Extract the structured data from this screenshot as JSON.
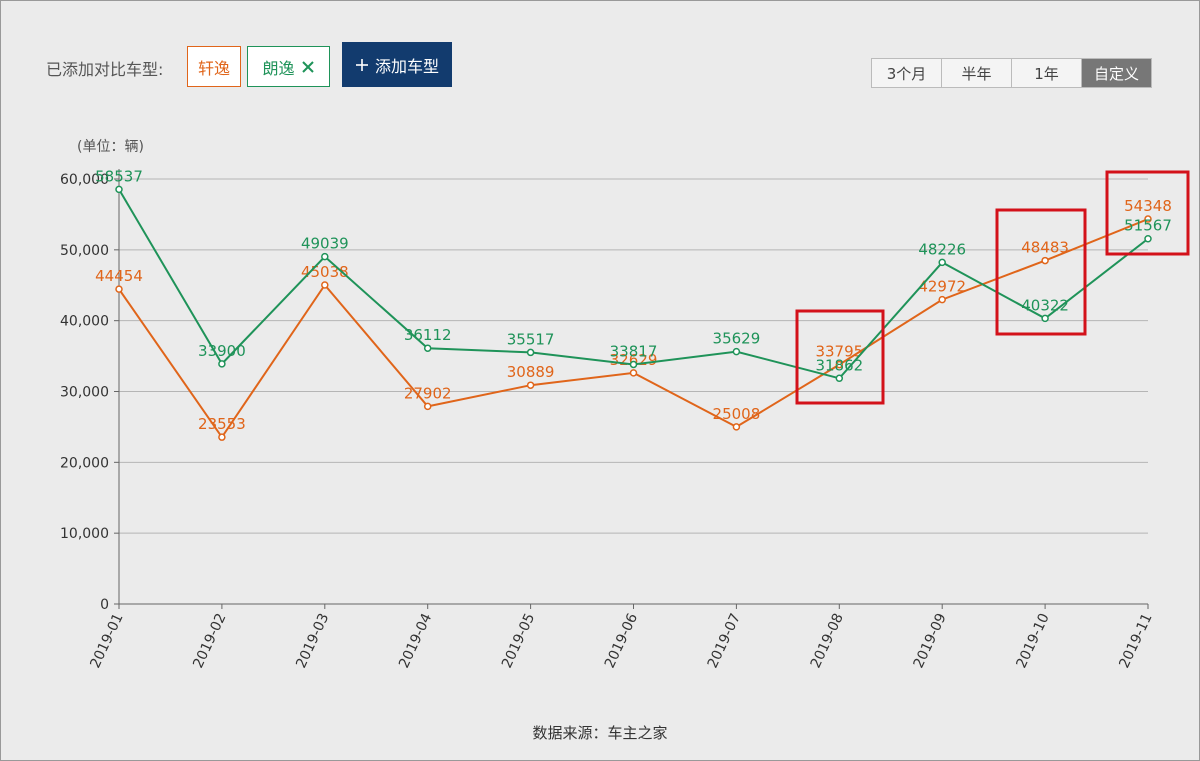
{
  "ui": {
    "compare_label": "已添加对比车型:",
    "add_button": "添加车型",
    "time_tabs": [
      "3个月",
      "半年",
      "1年",
      "自定义"
    ]
  },
  "chart_data": {
    "type": "line",
    "y_label": "(单位：辆)",
    "categories": [
      "2019-01",
      "2019-02",
      "2019-03",
      "2019-04",
      "2019-05",
      "2019-06",
      "2019-07",
      "2019-08",
      "2019-09",
      "2019-10",
      "2019-11"
    ],
    "series": [
      {
        "name": "轩逸",
        "color": "#e0651a",
        "values": [
          44454,
          23553,
          45038,
          27902,
          30889,
          32629,
          25008,
          33795,
          42972,
          48483,
          54348
        ]
      },
      {
        "name": "朗逸",
        "color": "#1f9359",
        "values": [
          58537,
          33900,
          49039,
          36112,
          35517,
          33817,
          35629,
          31862,
          48226,
          40322,
          51567
        ]
      }
    ],
    "ylim": [
      0,
      60000
    ],
    "yticks": [
      0,
      {
        "value": 10000,
        "label": "10,000"
      },
      {
        "value": 20000,
        "label": "20,000"
      },
      {
        "value": 30000,
        "label": "30,000"
      },
      {
        "value": 40000,
        "label": "40,000"
      },
      {
        "value": 50000,
        "label": "50,000"
      },
      {
        "value": 60000,
        "label": "60,000"
      }
    ],
    "grid": true
  },
  "source": "数据来源：车主之家"
}
